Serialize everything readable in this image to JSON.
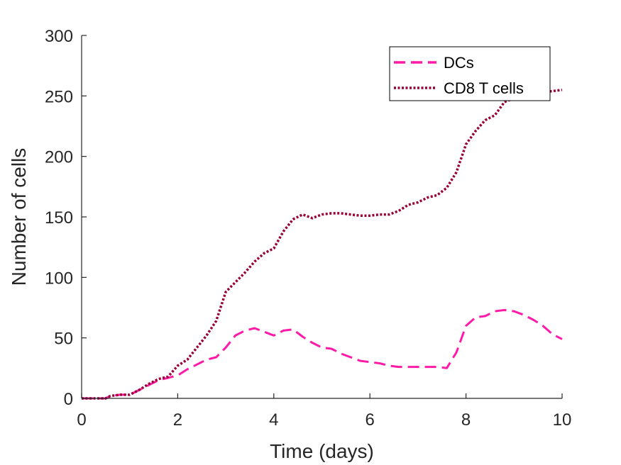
{
  "chart_data": {
    "type": "line",
    "xlabel": "Time (days)",
    "ylabel": "Number of cells",
    "xlim": [
      0,
      10
    ],
    "ylim": [
      0,
      300
    ],
    "xticks": [
      "0",
      "2",
      "4",
      "6",
      "8",
      "10"
    ],
    "yticks": [
      "0",
      "50",
      "100",
      "150",
      "200",
      "250",
      "300"
    ],
    "grid": false,
    "legend_position": "top-right",
    "series": [
      {
        "name": "DCs",
        "color": "#ff1aa8",
        "style": "dashed",
        "x": [
          0,
          0.5,
          0.6,
          0.8,
          1.0,
          1.2,
          1.4,
          1.6,
          1.8,
          2.0,
          2.2,
          2.4,
          2.6,
          2.8,
          3.0,
          3.2,
          3.4,
          3.6,
          3.8,
          4.0,
          4.2,
          4.4,
          4.6,
          4.8,
          5.0,
          5.2,
          5.4,
          5.6,
          5.8,
          6.0,
          6.2,
          6.4,
          6.6,
          6.8,
          7.0,
          7.2,
          7.4,
          7.6,
          7.8,
          8.0,
          8.2,
          8.4,
          8.6,
          8.8,
          9.0,
          9.2,
          9.4,
          9.6,
          9.8,
          10.0
        ],
        "y": [
          0,
          0,
          2,
          3,
          3,
          7,
          11,
          15,
          17,
          19,
          24,
          28,
          32,
          34,
          42,
          52,
          56,
          58,
          55,
          52,
          56,
          57,
          51,
          46,
          42,
          41,
          37,
          34,
          31,
          30,
          29,
          27,
          26,
          26,
          26,
          26,
          26,
          25,
          38,
          60,
          67,
          68,
          72,
          73,
          72,
          69,
          65,
          60,
          53,
          49
        ]
      },
      {
        "name": "CD8 T cells",
        "color": "#990033",
        "style": "dotted",
        "x": [
          0,
          0.5,
          0.6,
          0.8,
          1.0,
          1.2,
          1.4,
          1.6,
          1.8,
          2.0,
          2.2,
          2.4,
          2.6,
          2.8,
          3.0,
          3.2,
          3.4,
          3.6,
          3.8,
          4.0,
          4.2,
          4.4,
          4.6,
          4.8,
          5.0,
          5.2,
          5.4,
          5.6,
          5.8,
          6.0,
          6.2,
          6.4,
          6.6,
          6.8,
          7.0,
          7.2,
          7.4,
          7.6,
          7.8,
          8.0,
          8.2,
          8.4,
          8.6,
          8.8,
          9.0,
          9.2,
          9.4,
          9.6,
          9.8,
          10.0
        ],
        "y": [
          0,
          0,
          2,
          3,
          3,
          7,
          12,
          16,
          18,
          27,
          32,
          42,
          52,
          64,
          88,
          96,
          104,
          113,
          120,
          124,
          138,
          148,
          152,
          149,
          152,
          153,
          153,
          152,
          151,
          151,
          152,
          152,
          155,
          160,
          162,
          166,
          168,
          174,
          187,
          210,
          221,
          230,
          234,
          245,
          248,
          251,
          253,
          253,
          254,
          255
        ]
      }
    ]
  }
}
